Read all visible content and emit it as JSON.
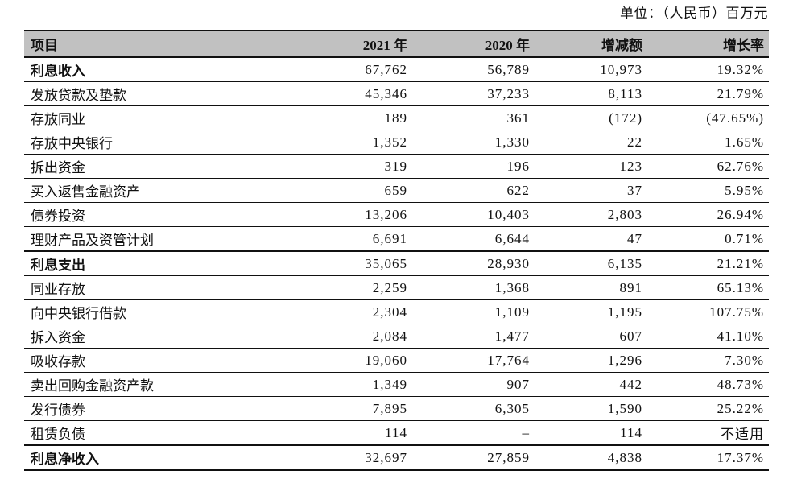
{
  "unit_label": "单位：（人民币）百万元",
  "colors": {
    "header_bg": "#c1c1c1",
    "border": "#111111",
    "text": "#111111",
    "page_bg": "#ffffff"
  },
  "table": {
    "columns": [
      {
        "key": "item",
        "label": "项目"
      },
      {
        "key": "y2021",
        "label": "2021 年"
      },
      {
        "key": "y2020",
        "label": "2020 年"
      },
      {
        "key": "change",
        "label": "增减额"
      },
      {
        "key": "rate",
        "label": "增长率"
      }
    ],
    "rows": [
      {
        "item": "利息收入",
        "y2021": "67,762",
        "y2020": "56,789",
        "change": "10,973",
        "rate": "19.32%",
        "bold": true,
        "thick_top": false
      },
      {
        "item": "发放贷款及垫款",
        "y2021": "45,346",
        "y2020": "37,233",
        "change": "8,113",
        "rate": "21.79%",
        "bold": false,
        "thick_top": false
      },
      {
        "item": "存放同业",
        "y2021": "189",
        "y2020": "361",
        "change": "(172)",
        "rate": "(47.65%)",
        "bold": false,
        "thick_top": false
      },
      {
        "item": "存放中央银行",
        "y2021": "1,352",
        "y2020": "1,330",
        "change": "22",
        "rate": "1.65%",
        "bold": false,
        "thick_top": false
      },
      {
        "item": "拆出资金",
        "y2021": "319",
        "y2020": "196",
        "change": "123",
        "rate": "62.76%",
        "bold": false,
        "thick_top": false
      },
      {
        "item": "买入返售金融资产",
        "y2021": "659",
        "y2020": "622",
        "change": "37",
        "rate": "5.95%",
        "bold": false,
        "thick_top": false
      },
      {
        "item": "债券投资",
        "y2021": "13,206",
        "y2020": "10,403",
        "change": "2,803",
        "rate": "26.94%",
        "bold": false,
        "thick_top": false
      },
      {
        "item": "理财产品及资管计划",
        "y2021": "6,691",
        "y2020": "6,644",
        "change": "47",
        "rate": "0.71%",
        "bold": false,
        "thick_top": false
      },
      {
        "item": "利息支出",
        "y2021": "35,065",
        "y2020": "28,930",
        "change": "6,135",
        "rate": "21.21%",
        "bold": true,
        "thick_top": true
      },
      {
        "item": "同业存放",
        "y2021": "2,259",
        "y2020": "1,368",
        "change": "891",
        "rate": "65.13%",
        "bold": false,
        "thick_top": false
      },
      {
        "item": "向中央银行借款",
        "y2021": "2,304",
        "y2020": "1,109",
        "change": "1,195",
        "rate": "107.75%",
        "bold": false,
        "thick_top": false
      },
      {
        "item": "拆入资金",
        "y2021": "2,084",
        "y2020": "1,477",
        "change": "607",
        "rate": "41.10%",
        "bold": false,
        "thick_top": false
      },
      {
        "item": "吸收存款",
        "y2021": "19,060",
        "y2020": "17,764",
        "change": "1,296",
        "rate": "7.30%",
        "bold": false,
        "thick_top": false
      },
      {
        "item": "卖出回购金融资产款",
        "y2021": "1,349",
        "y2020": "907",
        "change": "442",
        "rate": "48.73%",
        "bold": false,
        "thick_top": false
      },
      {
        "item": "发行债券",
        "y2021": "7,895",
        "y2020": "6,305",
        "change": "1,590",
        "rate": "25.22%",
        "bold": false,
        "thick_top": false
      },
      {
        "item": "租赁负债",
        "y2021": "114",
        "y2020": "–",
        "change": "114",
        "rate": "不适用",
        "bold": false,
        "thick_top": false
      },
      {
        "item": "利息净收入",
        "y2021": "32,697",
        "y2020": "27,859",
        "change": "4,838",
        "rate": "17.37%",
        "bold": true,
        "thick_top": true
      }
    ]
  }
}
